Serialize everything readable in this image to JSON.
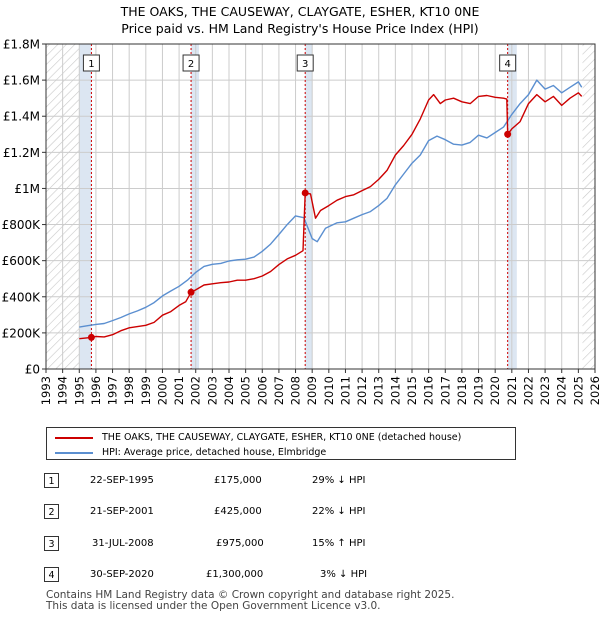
{
  "title_line1": "THE OAKS, THE CAUSEWAY, CLAYGATE, ESHER, KT10 0NE",
  "title_line2": "Price paid vs. HM Land Registry's House Price Index (HPI)",
  "colors": {
    "property": "#cc0000",
    "hpi": "#5b8fd0",
    "shade": "#dce6f2",
    "grid": "#cccccc"
  },
  "chart_data": {
    "type": "line",
    "title": "THE OAKS, THE CAUSEWAY, CLAYGATE, ESHER, KT10 0NE",
    "subtitle": "Price paid vs. HM Land Registry's House Price Index (HPI)",
    "xlabel": "",
    "ylabel": "",
    "xlim": [
      1993,
      2026
    ],
    "ylim": [
      0,
      1800000
    ],
    "y_ticks": [
      0,
      200000,
      400000,
      600000,
      800000,
      1000000,
      1200000,
      1400000,
      1600000,
      1800000
    ],
    "y_tick_labels": [
      "£0",
      "£200K",
      "£400K",
      "£600K",
      "£800K",
      "£1M",
      "£1.2M",
      "£1.4M",
      "£1.6M",
      "£1.8M"
    ],
    "x_ticks": [
      1993,
      1994,
      1995,
      1996,
      1997,
      1998,
      1999,
      2000,
      2001,
      2002,
      2003,
      2004,
      2005,
      2006,
      2007,
      2008,
      2009,
      2010,
      2011,
      2012,
      2013,
      2014,
      2015,
      2016,
      2017,
      2018,
      2019,
      2020,
      2021,
      2022,
      2023,
      2024,
      2025,
      2026
    ],
    "x_tick_labels": [
      "1993",
      "1994",
      "1995",
      "1996",
      "1997",
      "1998",
      "1999",
      "2000",
      "2001",
      "2002",
      "2003",
      "2004",
      "2005",
      "2006",
      "2007",
      "2008",
      "2009",
      "2010",
      "2011",
      "2012",
      "2013",
      "2014",
      "2015",
      "2016",
      "2017",
      "2018",
      "2019",
      "2020",
      "2021",
      "2022",
      "2023",
      "2024",
      "2025",
      "2026"
    ],
    "hatched_ranges": [
      [
        1993,
        1995.0
      ],
      [
        2025.25,
        2026
      ]
    ],
    "shaded_ranges": [
      [
        1995.0,
        1995.73
      ],
      [
        2001.72,
        2002.2
      ],
      [
        2008.58,
        2009.0
      ],
      [
        2020.75,
        2021.3
      ]
    ],
    "grid": true,
    "series": [
      {
        "name": "THE OAKS, THE CAUSEWAY, CLAYGATE, ESHER, KT10 0NE (detached house)",
        "color": "#cc0000",
        "points": [
          [
            1995.0,
            168000
          ],
          [
            1995.73,
            175000
          ],
          [
            1996.0,
            180000
          ],
          [
            1996.5,
            178000
          ],
          [
            1997.0,
            190000
          ],
          [
            1997.5,
            212000
          ],
          [
            1998.0,
            228000
          ],
          [
            1998.5,
            235000
          ],
          [
            1999.0,
            242000
          ],
          [
            1999.5,
            258000
          ],
          [
            2000.0,
            298000
          ],
          [
            2000.5,
            318000
          ],
          [
            2001.0,
            352000
          ],
          [
            2001.4,
            372000
          ],
          [
            2001.72,
            425000
          ],
          [
            2002.0,
            438000
          ],
          [
            2002.5,
            465000
          ],
          [
            2003.0,
            472000
          ],
          [
            2003.5,
            478000
          ],
          [
            2004.0,
            482000
          ],
          [
            2004.5,
            492000
          ],
          [
            2005.0,
            492000
          ],
          [
            2005.5,
            500000
          ],
          [
            2006.0,
            515000
          ],
          [
            2006.5,
            540000
          ],
          [
            2007.0,
            578000
          ],
          [
            2007.5,
            610000
          ],
          [
            2008.0,
            630000
          ],
          [
            2008.45,
            655000
          ],
          [
            2008.58,
            975000
          ],
          [
            2008.9,
            970000
          ],
          [
            2009.2,
            835000
          ],
          [
            2009.5,
            878000
          ],
          [
            2010.0,
            905000
          ],
          [
            2010.5,
            935000
          ],
          [
            2011.0,
            955000
          ],
          [
            2011.5,
            965000
          ],
          [
            2012.0,
            988000
          ],
          [
            2012.5,
            1010000
          ],
          [
            2013.0,
            1050000
          ],
          [
            2013.5,
            1100000
          ],
          [
            2014.0,
            1185000
          ],
          [
            2014.5,
            1238000
          ],
          [
            2015.0,
            1300000
          ],
          [
            2015.5,
            1385000
          ],
          [
            2016.0,
            1490000
          ],
          [
            2016.3,
            1520000
          ],
          [
            2016.7,
            1470000
          ],
          [
            2017.0,
            1490000
          ],
          [
            2017.5,
            1500000
          ],
          [
            2018.0,
            1480000
          ],
          [
            2018.5,
            1470000
          ],
          [
            2019.0,
            1510000
          ],
          [
            2019.5,
            1515000
          ],
          [
            2020.0,
            1505000
          ],
          [
            2020.5,
            1500000
          ],
          [
            2020.7,
            1495000
          ],
          [
            2020.75,
            1300000
          ],
          [
            2021.0,
            1330000
          ],
          [
            2021.5,
            1370000
          ],
          [
            2022.0,
            1470000
          ],
          [
            2022.5,
            1520000
          ],
          [
            2023.0,
            1480000
          ],
          [
            2023.5,
            1510000
          ],
          [
            2024.0,
            1460000
          ],
          [
            2024.5,
            1500000
          ],
          [
            2025.0,
            1530000
          ],
          [
            2025.2,
            1510000
          ]
        ]
      },
      {
        "name": "HPI: Average price, detached house, Elmbridge",
        "color": "#5b8fd0",
        "points": [
          [
            1995.0,
            232000
          ],
          [
            1995.5,
            240000
          ],
          [
            1996.0,
            247000
          ],
          [
            1996.5,
            252000
          ],
          [
            1997.0,
            268000
          ],
          [
            1997.5,
            285000
          ],
          [
            1998.0,
            305000
          ],
          [
            1998.5,
            322000
          ],
          [
            1999.0,
            342000
          ],
          [
            1999.5,
            368000
          ],
          [
            2000.0,
            405000
          ],
          [
            2000.5,
            432000
          ],
          [
            2001.0,
            458000
          ],
          [
            2001.5,
            492000
          ],
          [
            2002.0,
            535000
          ],
          [
            2002.5,
            568000
          ],
          [
            2003.0,
            580000
          ],
          [
            2003.5,
            585000
          ],
          [
            2004.0,
            598000
          ],
          [
            2004.5,
            605000
          ],
          [
            2005.0,
            608000
          ],
          [
            2005.5,
            620000
          ],
          [
            2006.0,
            652000
          ],
          [
            2006.5,
            692000
          ],
          [
            2007.0,
            745000
          ],
          [
            2007.5,
            800000
          ],
          [
            2008.0,
            848000
          ],
          [
            2008.5,
            838000
          ],
          [
            2009.0,
            722000
          ],
          [
            2009.3,
            705000
          ],
          [
            2009.8,
            780000
          ],
          [
            2010.5,
            810000
          ],
          [
            2011.0,
            815000
          ],
          [
            2011.5,
            835000
          ],
          [
            2012.0,
            855000
          ],
          [
            2012.5,
            872000
          ],
          [
            2013.0,
            905000
          ],
          [
            2013.5,
            945000
          ],
          [
            2014.0,
            1020000
          ],
          [
            2014.5,
            1080000
          ],
          [
            2015.0,
            1140000
          ],
          [
            2015.5,
            1185000
          ],
          [
            2016.0,
            1265000
          ],
          [
            2016.5,
            1290000
          ],
          [
            2017.0,
            1270000
          ],
          [
            2017.5,
            1245000
          ],
          [
            2018.0,
            1240000
          ],
          [
            2018.5,
            1255000
          ],
          [
            2019.0,
            1295000
          ],
          [
            2019.5,
            1280000
          ],
          [
            2020.0,
            1310000
          ],
          [
            2020.5,
            1340000
          ],
          [
            2021.0,
            1410000
          ],
          [
            2021.5,
            1470000
          ],
          [
            2022.0,
            1520000
          ],
          [
            2022.5,
            1600000
          ],
          [
            2023.0,
            1550000
          ],
          [
            2023.5,
            1570000
          ],
          [
            2024.0,
            1530000
          ],
          [
            2024.5,
            1560000
          ],
          [
            2025.0,
            1590000
          ],
          [
            2025.2,
            1560000
          ]
        ]
      }
    ],
    "sales": [
      {
        "label": "1",
        "x": 1995.73,
        "y": 175000
      },
      {
        "label": "2",
        "x": 2001.72,
        "y": 425000
      },
      {
        "label": "3",
        "x": 2008.58,
        "y": 975000
      },
      {
        "label": "4",
        "x": 2020.75,
        "y": 1300000
      }
    ]
  },
  "legend": {
    "property": "THE OAKS, THE CAUSEWAY, CLAYGATE, ESHER, KT10 0NE (detached house)",
    "hpi": "HPI: Average price, detached house, Elmbridge"
  },
  "sales_table": [
    {
      "num": "1",
      "date": "22-SEP-1995",
      "price": "£175,000",
      "hpi": "29% ↓ HPI"
    },
    {
      "num": "2",
      "date": "21-SEP-2001",
      "price": "£425,000",
      "hpi": "22% ↓ HPI"
    },
    {
      "num": "3",
      "date": "31-JUL-2008",
      "price": "£975,000",
      "hpi": "15% ↑ HPI"
    },
    {
      "num": "4",
      "date": "30-SEP-2020",
      "price": "£1,300,000",
      "hpi": "3% ↓ HPI"
    }
  ],
  "footer_line1": "Contains HM Land Registry data © Crown copyright and database right 2025.",
  "footer_line2": "This data is licensed under the Open Government Licence v3.0."
}
